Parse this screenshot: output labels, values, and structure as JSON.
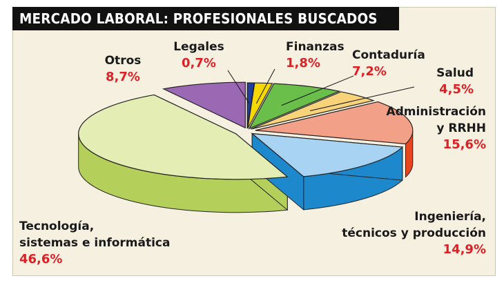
{
  "title": "MERCADO LABORAL: PROFESIONALES BUSCADOS",
  "chart_data": {
    "type": "pie",
    "title": "MERCADO LABORAL: PROFESIONALES BUSCADOS",
    "slices": [
      {
        "label": "Legales",
        "value": 0.7,
        "value_label": "0,7%",
        "color": "#1f3f9e",
        "side_color": "#142a70"
      },
      {
        "label": "Finanzas",
        "value": 1.8,
        "value_label": "1,8%",
        "color": "#f5d800",
        "side_color": "#b8a000"
      },
      {
        "label": "Contaduría",
        "value": 7.2,
        "value_label": "7,2%",
        "color": "#6abf4b",
        "side_color": "#3f8a2c"
      },
      {
        "label": "Salud",
        "value": 4.5,
        "value_label": "4,5%",
        "color": "#f8d37a",
        "side_color": "#d4a545"
      },
      {
        "label": "Administración y RRHH",
        "label_lines": [
          "Administración",
          "y RRHH"
        ],
        "value": 15.6,
        "value_label": "15,6%",
        "color": "#f3a088",
        "side_color": "#e8461e"
      },
      {
        "label": "Ingeniería, técnicos y producción",
        "label_lines": [
          "Ingeniería,",
          "técnicos y producción"
        ],
        "value": 14.9,
        "value_label": "14,9%",
        "color": "#a9d3f2",
        "side_color": "#1e88cc"
      },
      {
        "label": "Tecnología, sistemas e informática",
        "label_lines": [
          "Tecnología,",
          "sistemas e informática"
        ],
        "value": 46.6,
        "value_label": "46,6%",
        "color": "#e4eeb4",
        "side_color": "#b4d05a"
      },
      {
        "label": "Otros",
        "value": 8.7,
        "value_label": "8,7%",
        "color": "#9b68b4",
        "side_color": "#5b2a78"
      }
    ],
    "legend": "none",
    "style": "3d-exploded"
  }
}
